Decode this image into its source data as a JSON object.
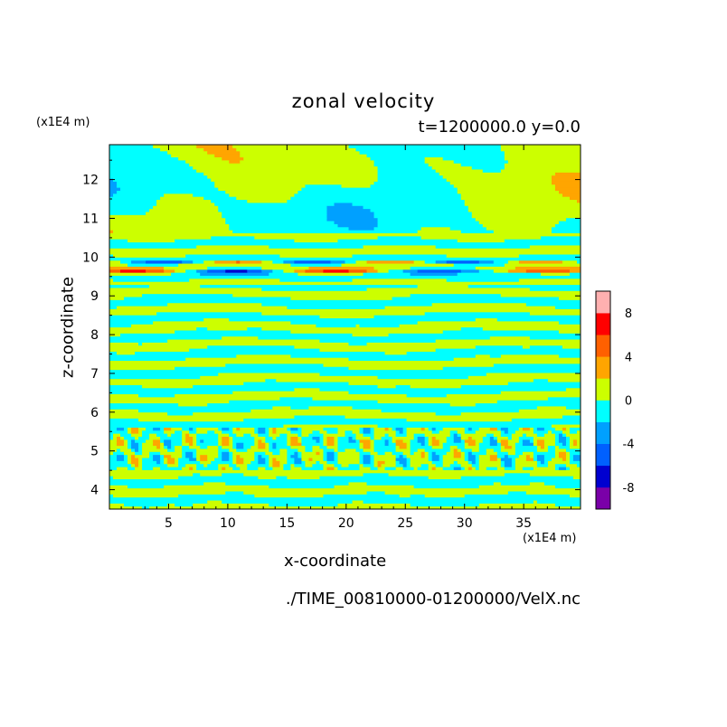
{
  "chart_data": {
    "type": "heatmap",
    "title": "zonal velocity",
    "subtitle": "t=1200000.0 y=0.0",
    "xlabel": "x-coordinate",
    "ylabel": "z-coordinate",
    "x_unit": "(x1E4 m)",
    "y_unit": "(x1E4 m)",
    "footer": "./TIME_00810000-01200000/VelX.nc",
    "xlim": [
      0,
      39.8
    ],
    "ylim": [
      3.5,
      12.9
    ],
    "x_ticks": [
      5,
      10,
      15,
      20,
      25,
      30,
      35
    ],
    "y_ticks": [
      4,
      5,
      6,
      7,
      8,
      9,
      10,
      11,
      12
    ],
    "colorbar": {
      "levels": [
        -10,
        -8,
        -6,
        -4,
        -2,
        0,
        2,
        4,
        6,
        8,
        10
      ],
      "tick_labels": [
        "-8",
        "-4",
        "0",
        "4",
        "8"
      ],
      "tick_values": [
        -8,
        -4,
        0,
        4,
        8
      ],
      "colors": [
        "#7a00a8",
        "#0000d0",
        "#0060ff",
        "#00a0ff",
        "#00ffff",
        "#ccff00",
        "#ffa500",
        "#ff6000",
        "#ff0000",
        "#ffb0b0"
      ]
    },
    "regions": [
      {
        "z_range": [
          11.5,
          12.9
        ],
        "description_pattern": "large-scale",
        "dominant_values": [
          0,
          -1,
          1
        ]
      },
      {
        "z_range": [
          9.3,
          10.1
        ],
        "description_pattern": "shear layer",
        "dominant_values": [
          -5,
          3,
          0
        ]
      },
      {
        "z_range": [
          6.0,
          9.3
        ],
        "description_pattern": "layered bands",
        "dominant_values": [
          -1,
          1
        ]
      },
      {
        "z_range": [
          4.5,
          5.6
        ],
        "description_pattern": "cellular",
        "dominant_values": [
          -3,
          1,
          3
        ]
      }
    ]
  }
}
